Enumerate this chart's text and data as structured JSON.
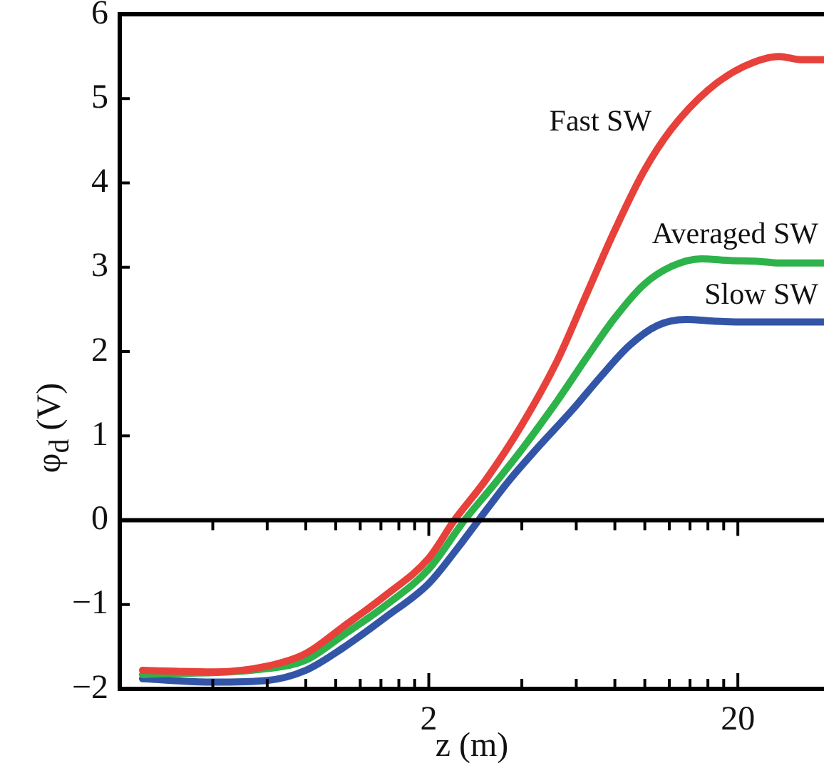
{
  "chart_data": {
    "type": "line",
    "xlabel": "z (m)",
    "ylabel": "φ$_{d}$ (V)",
    "log": "x",
    "xlim": [
      0.2,
      38
    ],
    "ylim": [
      -2,
      6
    ],
    "xticks": [
      {
        "value": 0.4,
        "label": null
      },
      {
        "value": 0.6,
        "label": null
      },
      {
        "value": 0.8,
        "label": null
      },
      {
        "value": 1,
        "label": null
      },
      {
        "value": 1.2,
        "label": null
      },
      {
        "value": 1.4,
        "label": null
      },
      {
        "value": 1.6,
        "label": null
      },
      {
        "value": 1.8,
        "label": null
      },
      2,
      {
        "value": 4,
        "label": null
      },
      {
        "value": 6,
        "label": null
      },
      {
        "value": 8,
        "label": null
      },
      {
        "value": 10,
        "label": null
      },
      {
        "value": 12,
        "label": null
      },
      {
        "value": 14,
        "label": null
      },
      {
        "value": 16,
        "label": null
      },
      {
        "value": 18,
        "label": null
      },
      20
    ],
    "yticks": [
      -2,
      -1,
      0,
      1,
      2,
      3,
      4,
      5,
      6
    ],
    "grid": false,
    "legend": false,
    "marker": "none",
    "line_style": "solid",
    "ref_lines": [
      {
        "axis": "y",
        "value": 0,
        "color": "#000000"
      }
    ],
    "series": [
      {
        "name": "Fast SW",
        "color": "#e8403a",
        "x": [
          0.237,
          0.4,
          0.6,
          0.8,
          1.05,
          1.45,
          2,
          2.42,
          3.06,
          4,
          5.22,
          6.46,
          8,
          9.9,
          12.2,
          16,
          20.9,
          27.2,
          32,
          38
        ],
        "values": [
          -1.78,
          -1.8,
          -1.73,
          -1.58,
          -1.27,
          -0.89,
          -0.45,
          0,
          0.48,
          1.13,
          1.9,
          2.67,
          3.44,
          4.13,
          4.64,
          5.1,
          5.38,
          5.5,
          5.46,
          5.46
        ]
      },
      {
        "name": "Averaged SW",
        "color": "#2db34a",
        "x": [
          0.237,
          0.6,
          0.8,
          1.05,
          1.45,
          2,
          2.61,
          3.23,
          4,
          5.22,
          6.46,
          8,
          9.9,
          12.2,
          15.2,
          18.8,
          23.2,
          27.2,
          38
        ],
        "values": [
          -1.83,
          -1.76,
          -1.66,
          -1.37,
          -1.01,
          -0.58,
          0,
          0.41,
          0.84,
          1.42,
          1.92,
          2.4,
          2.79,
          3.01,
          3.1,
          3.08,
          3.07,
          3.05,
          3.05
        ]
      },
      {
        "name": "Slow SW",
        "color": "#3355a8",
        "x": [
          0.237,
          0.4,
          0.6,
          0.8,
          1.05,
          1.45,
          2,
          2.48,
          2.9,
          3.6,
          4.45,
          5.8,
          7.19,
          8.9,
          11,
          13.6,
          16.9,
          20.9,
          38
        ],
        "values": [
          -1.88,
          -1.92,
          -1.9,
          -1.78,
          -1.52,
          -1.15,
          -0.75,
          -0.33,
          0,
          0.45,
          0.84,
          1.3,
          1.7,
          2.07,
          2.31,
          2.38,
          2.36,
          2.35,
          2.35
        ]
      }
    ]
  }
}
